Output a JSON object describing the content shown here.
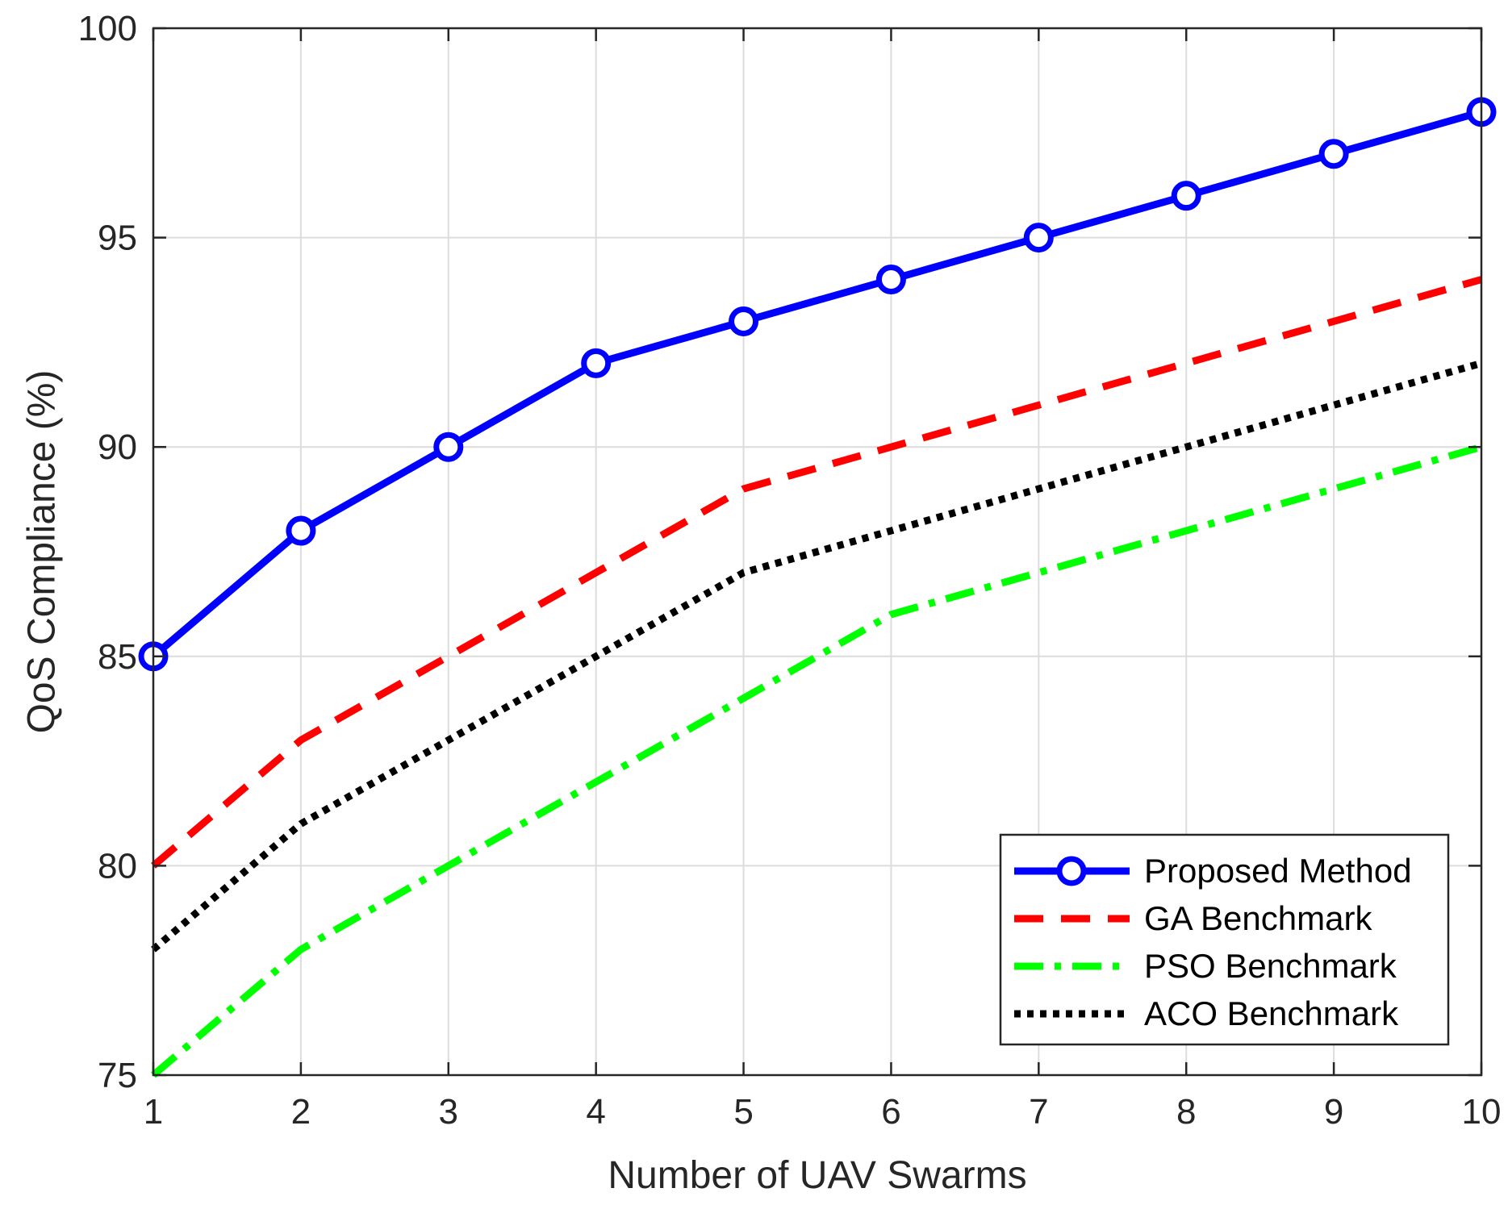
{
  "chart_data": {
    "type": "line",
    "title": "",
    "xlabel": "Number of UAV Swarms",
    "ylabel": "QoS Compliance (%)",
    "x": [
      1,
      2,
      3,
      4,
      5,
      6,
      7,
      8,
      9,
      10
    ],
    "xlim": [
      1,
      10
    ],
    "ylim": [
      75,
      100
    ],
    "xticks": [
      1,
      2,
      3,
      4,
      5,
      6,
      7,
      8,
      9,
      10
    ],
    "yticks": [
      75,
      80,
      85,
      90,
      95,
      100
    ],
    "grid": true,
    "legend_position": "bottom-right",
    "series": [
      {
        "name": "Proposed Method",
        "values": [
          85,
          88,
          90,
          92,
          93,
          94,
          95,
          96,
          97,
          98
        ],
        "color": "#0000ff",
        "style": "solid",
        "marker": "circle"
      },
      {
        "name": "GA Benchmark",
        "values": [
          80,
          83,
          85,
          87,
          89,
          90,
          91,
          92,
          93,
          94
        ],
        "color": "#ff0000",
        "style": "dashed",
        "marker": "none"
      },
      {
        "name": "PSO Benchmark",
        "values": [
          75,
          78,
          80,
          82,
          84,
          86,
          87,
          88,
          89,
          90
        ],
        "color": "#00ff00",
        "style": "dashdot",
        "marker": "none"
      },
      {
        "name": "ACO Benchmark",
        "values": [
          78,
          81,
          83,
          85,
          87,
          88,
          89,
          90,
          91,
          92
        ],
        "color": "#000000",
        "style": "dotted",
        "marker": "none"
      }
    ]
  }
}
